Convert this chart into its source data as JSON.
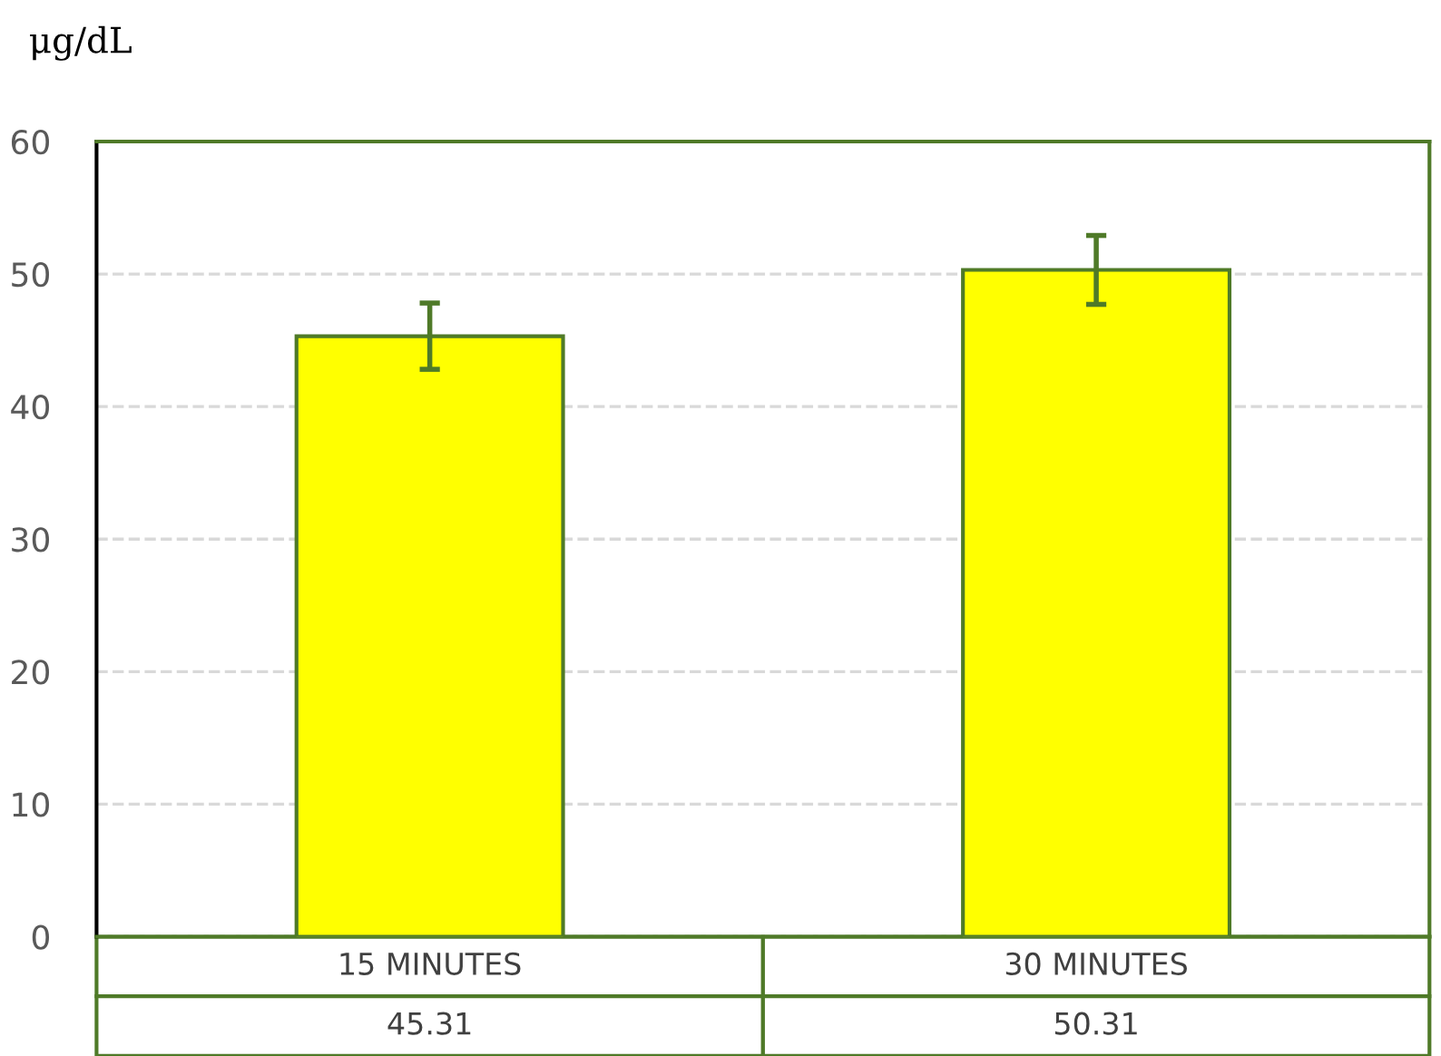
{
  "chart_data": {
    "type": "bar",
    "ylabel": "μg/dL",
    "categories": [
      "15 MINUTES",
      "30 MINUTES"
    ],
    "series": [
      {
        "color": "#ffff00",
        "values": [
          45.31,
          50.31
        ],
        "errors": [
          2.5,
          2.6
        ]
      }
    ],
    "ylim": [
      0,
      60
    ],
    "yticks": [
      0,
      10,
      20,
      30,
      40,
      50,
      60
    ],
    "grid": "y",
    "line_style": "dashed",
    "data_labels": true
  }
}
